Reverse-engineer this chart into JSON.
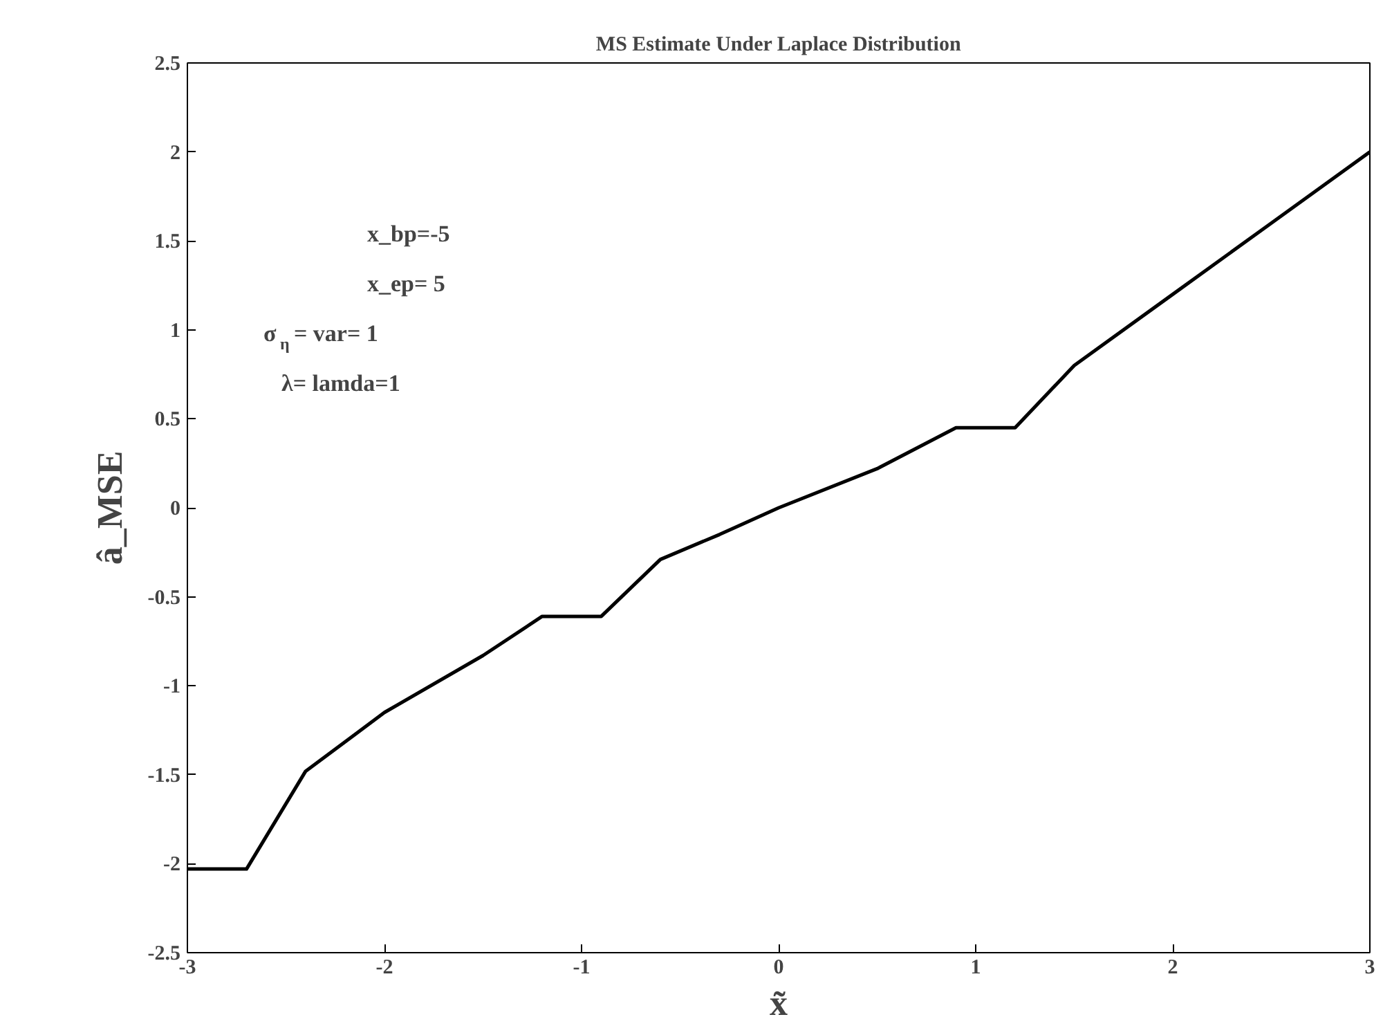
{
  "chart_data": {
    "type": "line",
    "title": "MS Estimate Under Laplace Distribution",
    "xlabel": "x̃",
    "ylabel": "â_MSE",
    "x": [
      -3,
      -2.7,
      -2.4,
      -2,
      -1.5,
      -1.2,
      -0.9,
      -0.6,
      -0.3,
      0,
      0.5,
      0.9,
      1.2,
      1.5,
      2,
      2.5,
      3
    ],
    "series": [
      {
        "color": "#000000",
        "values": [
          -2.03,
          -2.03,
          -1.48,
          -1.15,
          -0.83,
          -0.61,
          -0.61,
          -0.29,
          -0.15,
          0,
          0.22,
          0.45,
          0.45,
          0.8,
          1.2,
          1.6,
          2.0
        ]
      }
    ],
    "xlim": [
      -3,
      3
    ],
    "xticks": [
      -3,
      -2,
      -1,
      0,
      1,
      2,
      3
    ],
    "ylim": [
      -2.5,
      2.5
    ],
    "yticks": [
      -2.5,
      -2,
      -1.5,
      -1,
      -0.5,
      0,
      0.5,
      1,
      1.5,
      2,
      2.5
    ],
    "annotations": [
      "x_bp=-5",
      "x_ep= 5",
      "σ$_{η}$= var= 1",
      "λ=  lamda=1"
    ],
    "grid": false,
    "marker": "none",
    "line_style": "solid"
  }
}
